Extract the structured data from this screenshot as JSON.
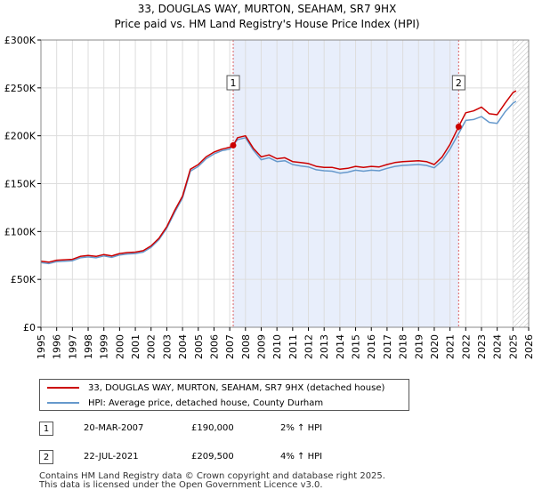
{
  "chart_data": {
    "type": "line",
    "title": "33, DOUGLAS WAY, MURTON, SEAHAM, SR7 9HX",
    "subtitle": "Price paid vs. HM Land Registry's House Price Index (HPI)",
    "xlim": [
      1995,
      2026
    ],
    "ylim": [
      0,
      300000
    ],
    "x_ticks": [
      "1995",
      "1996",
      "1997",
      "1998",
      "1999",
      "2000",
      "2001",
      "2002",
      "2003",
      "2004",
      "2005",
      "2006",
      "2007",
      "2008",
      "2009",
      "2010",
      "2011",
      "2012",
      "2013",
      "2014",
      "2015",
      "2016",
      "2017",
      "2018",
      "2019",
      "2020",
      "2021",
      "2022",
      "2023",
      "2024",
      "2025",
      "2026"
    ],
    "y_ticks": [
      {
        "value": 0,
        "label": "£0"
      },
      {
        "value": 50000,
        "label": "£50K"
      },
      {
        "value": 100000,
        "label": "£100K"
      },
      {
        "value": 150000,
        "label": "£150K"
      },
      {
        "value": 200000,
        "label": "£200K"
      },
      {
        "value": 250000,
        "label": "£250K"
      },
      {
        "value": 300000,
        "label": "£300K"
      }
    ],
    "grid": true,
    "shaded_region": {
      "from": 2007.22,
      "to": 2021.55,
      "color": "#e8eefb"
    },
    "hatched_region": {
      "from": 2025.0,
      "to": 2026.0
    },
    "series": [
      {
        "name": "33, DOUGLAS WAY, MURTON, SEAHAM, SR7 9HX (detached house)",
        "color": "#cc0000",
        "x": [
          1995.0,
          1995.5,
          1996.0,
          1996.5,
          1997.0,
          1997.5,
          1998.0,
          1998.5,
          1999.0,
          1999.5,
          2000.0,
          2000.5,
          2001.0,
          2001.5,
          2002.0,
          2002.5,
          2003.0,
          2003.5,
          2004.0,
          2004.5,
          2005.0,
          2005.5,
          2006.0,
          2006.5,
          2007.0,
          2007.22,
          2007.5,
          2008.0,
          2008.5,
          2009.0,
          2009.5,
          2010.0,
          2010.5,
          2011.0,
          2011.5,
          2012.0,
          2012.5,
          2013.0,
          2013.5,
          2014.0,
          2014.5,
          2015.0,
          2015.5,
          2016.0,
          2016.5,
          2017.0,
          2017.5,
          2018.0,
          2018.5,
          2019.0,
          2019.5,
          2020.0,
          2020.5,
          2021.0,
          2021.55,
          2022.0,
          2022.5,
          2023.0,
          2023.5,
          2024.0,
          2024.5,
          2025.0,
          2025.2
        ],
        "y": [
          69000,
          68000,
          70000,
          70500,
          71000,
          74000,
          75000,
          74000,
          76000,
          74500,
          77000,
          78000,
          78500,
          80000,
          85000,
          93000,
          105000,
          122000,
          137000,
          165000,
          170000,
          178000,
          183000,
          186000,
          188000,
          190000,
          198000,
          200000,
          187000,
          178000,
          180000,
          176000,
          177000,
          173000,
          172000,
          171000,
          168000,
          167000,
          167000,
          165000,
          166000,
          168000,
          167000,
          168000,
          167500,
          170000,
          172000,
          173000,
          173500,
          174000,
          173000,
          170000,
          178000,
          191000,
          209500,
          224000,
          226000,
          230000,
          223000,
          222000,
          234000,
          245000,
          247000
        ]
      },
      {
        "name": "HPI: Average price, detached house, County Durham",
        "color": "#6699cc",
        "x": [
          1995.0,
          1995.5,
          1996.0,
          1996.5,
          1997.0,
          1997.5,
          1998.0,
          1998.5,
          1999.0,
          1999.5,
          2000.0,
          2000.5,
          2001.0,
          2001.5,
          2002.0,
          2002.5,
          2003.0,
          2003.5,
          2004.0,
          2004.5,
          2005.0,
          2005.5,
          2006.0,
          2006.5,
          2007.0,
          2007.5,
          2008.0,
          2008.5,
          2009.0,
          2009.5,
          2010.0,
          2010.5,
          2011.0,
          2011.5,
          2012.0,
          2012.5,
          2013.0,
          2013.5,
          2014.0,
          2014.5,
          2015.0,
          2015.5,
          2016.0,
          2016.5,
          2017.0,
          2017.5,
          2018.0,
          2018.5,
          2019.0,
          2019.5,
          2020.0,
          2020.5,
          2021.0,
          2021.5,
          2022.0,
          2022.5,
          2023.0,
          2023.5,
          2024.0,
          2024.5,
          2025.0,
          2025.2
        ],
        "y": [
          67500,
          66500,
          68500,
          69000,
          69500,
          72500,
          73500,
          72500,
          74500,
          73000,
          75500,
          76500,
          77000,
          78500,
          83500,
          91500,
          103500,
          120000,
          135000,
          163000,
          168000,
          176000,
          181000,
          184500,
          186000,
          196000,
          198000,
          185000,
          175000,
          177000,
          173000,
          174000,
          170000,
          168500,
          167500,
          164500,
          163500,
          163000,
          161000,
          162000,
          164000,
          163000,
          164000,
          163500,
          166000,
          168000,
          169000,
          169500,
          170000,
          169000,
          166500,
          174000,
          186000,
          201000,
          216000,
          217000,
          220000,
          214000,
          213000,
          225000,
          234000,
          236000
        ]
      }
    ],
    "sales": [
      {
        "marker": "1",
        "x": 2007.22,
        "y": 190000
      },
      {
        "marker": "2",
        "x": 2021.55,
        "y": 209500
      }
    ]
  },
  "legend": {
    "entries": [
      {
        "label": "33, DOUGLAS WAY, MURTON, SEAHAM, SR7 9HX (detached house)",
        "color": "#cc0000"
      },
      {
        "label": "HPI: Average price, detached house, County Durham",
        "color": "#6699cc"
      }
    ]
  },
  "sales_table": [
    {
      "marker": "1",
      "date": "20-MAR-2007",
      "price": "£190,000",
      "hpi": "2% ↑ HPI"
    },
    {
      "marker": "2",
      "date": "22-JUL-2021",
      "price": "£209,500",
      "hpi": "4% ↑ HPI"
    }
  ],
  "footer": {
    "line1": "Contains HM Land Registry data © Crown copyright and database right 2025.",
    "line2": "This data is licensed under the Open Government Licence v3.0."
  }
}
